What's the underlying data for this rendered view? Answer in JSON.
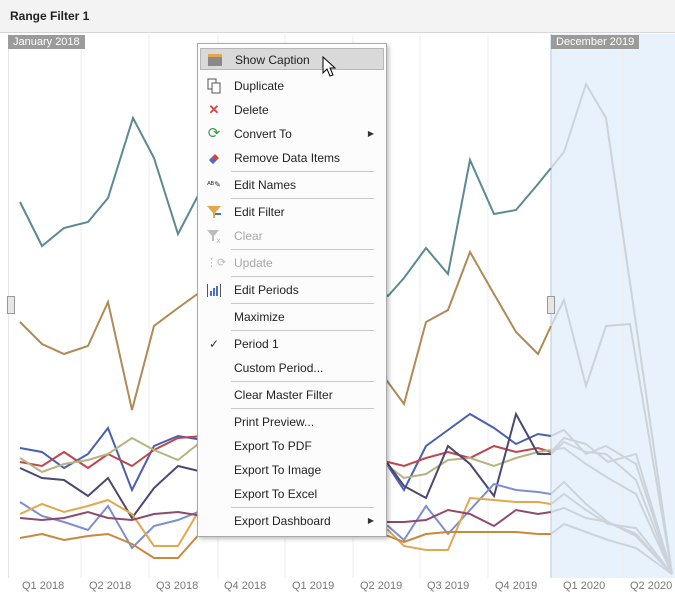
{
  "panel": {
    "title": "Range Filter 1"
  },
  "selection": {
    "start_label": "January 2018",
    "end_label": "December 2019"
  },
  "axis": {
    "ticks": [
      "Q1 2018",
      "Q2 2018",
      "Q3 2018",
      "Q4 2018",
      "Q1 2019",
      "Q2 2019",
      "Q3 2019",
      "Q4 2019",
      "Q1 2020",
      "Q2 2020"
    ]
  },
  "colors": {
    "selection_band": "#e8f2fd",
    "menu_hover": "#d9d9d9"
  },
  "menu": {
    "items": [
      {
        "label": "Show Caption",
        "icon": "caption-icon",
        "hover": true
      },
      {
        "label": "Duplicate",
        "icon": "duplicate-icon"
      },
      {
        "label": "Delete",
        "icon": "delete-icon"
      },
      {
        "label": "Convert To",
        "icon": "convert-icon",
        "submenu": true
      },
      {
        "label": "Remove Data Items",
        "icon": "eraser-icon"
      },
      {
        "label": "Edit Names",
        "icon": "edit-names-icon"
      },
      {
        "label": "Edit Filter",
        "icon": "filter-icon"
      },
      {
        "label": "Clear",
        "icon": "clear-filter-icon",
        "disabled": true
      },
      {
        "label": "Update",
        "icon": "update-icon",
        "disabled": true
      },
      {
        "label": "Edit Periods",
        "icon": "periods-icon"
      },
      {
        "label": "Maximize",
        "icon": ""
      },
      {
        "label": "Period 1",
        "icon": "check-icon"
      },
      {
        "label": "Custom Period...",
        "icon": ""
      },
      {
        "label": "Clear Master Filter",
        "icon": ""
      },
      {
        "label": "Print Preview...",
        "icon": ""
      },
      {
        "label": "Export To PDF",
        "icon": ""
      },
      {
        "label": "Export To Image",
        "icon": ""
      },
      {
        "label": "Export To Excel",
        "icon": ""
      },
      {
        "label": "Export Dashboard",
        "icon": "",
        "submenu": true
      }
    ]
  }
}
